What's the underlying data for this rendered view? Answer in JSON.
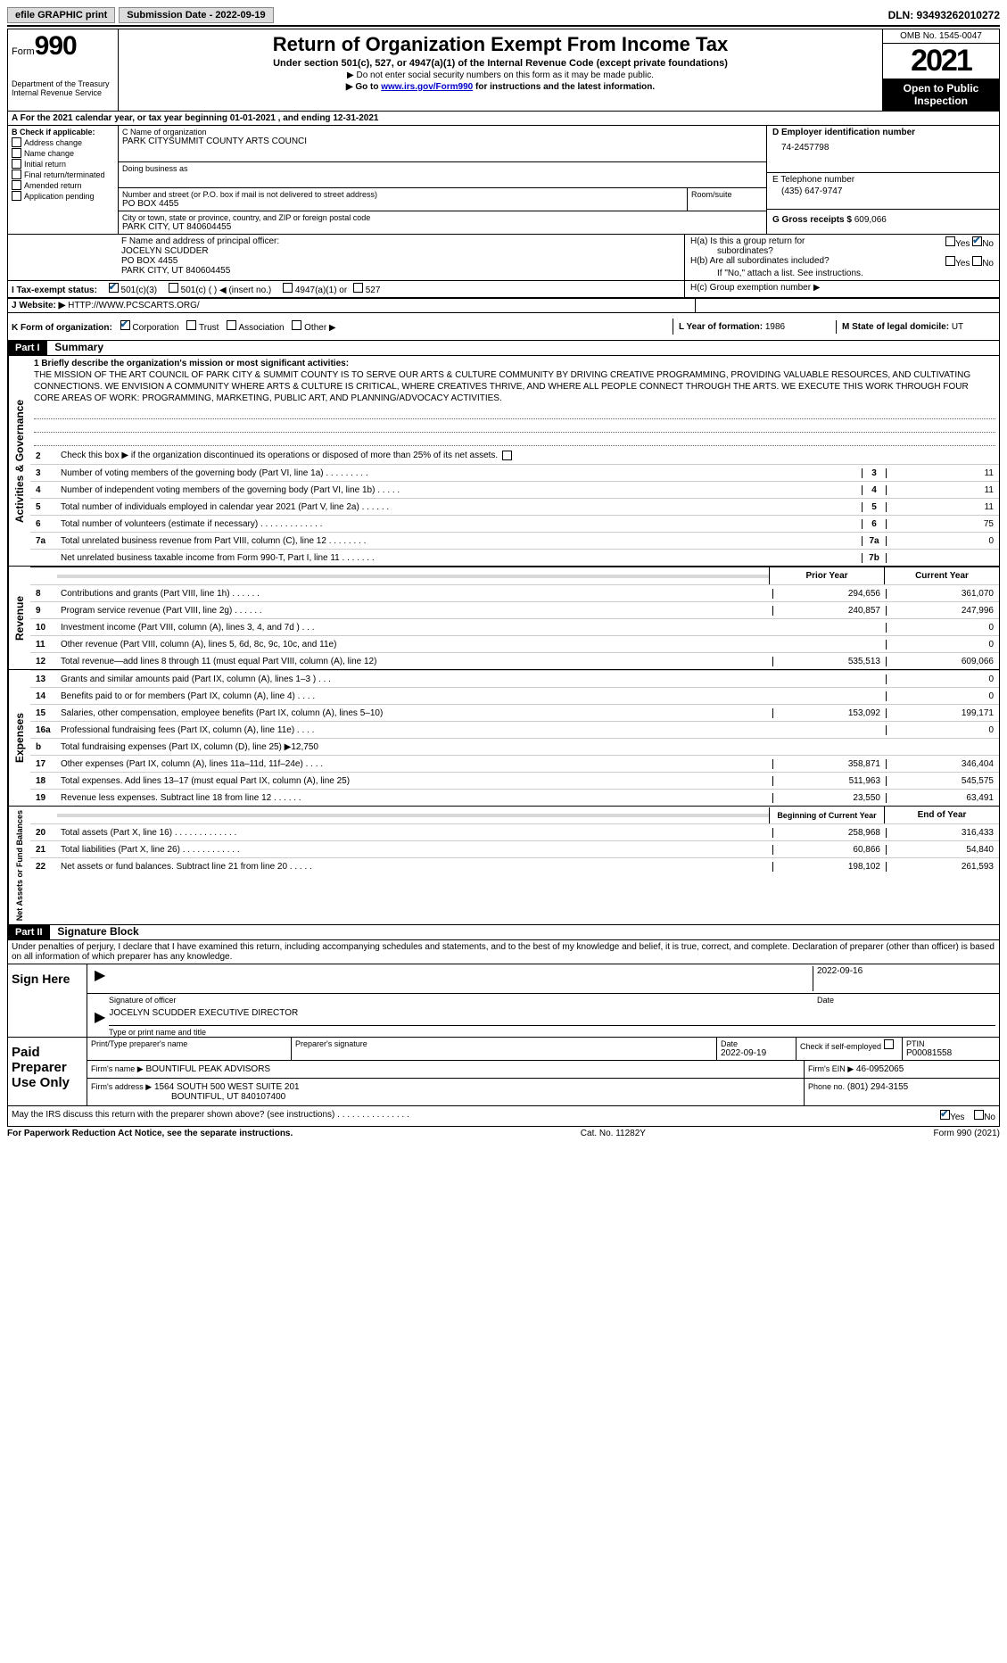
{
  "topbar": {
    "efile": "efile GRAPHIC print",
    "submission": "Submission Date - 2022-09-19",
    "dln": "DLN: 93493262010272"
  },
  "header": {
    "form_label": "Form",
    "form_num": "990",
    "dept": "Department of the Treasury",
    "irs": "Internal Revenue Service",
    "title": "Return of Organization Exempt From Income Tax",
    "subtitle": "Under section 501(c), 527, or 4947(a)(1) of the Internal Revenue Code (except private foundations)",
    "note1": "▶ Do not enter social security numbers on this form as it may be made public.",
    "note2": "▶ Go to ",
    "note2_link": "www.irs.gov/Form990",
    "note2_tail": " for instructions and the latest information.",
    "omb": "OMB No. 1545-0047",
    "year": "2021",
    "open": "Open to Public Inspection"
  },
  "period": {
    "label_a": "A For the 2021 calendar year, or tax year beginning 01-01-2021",
    "label_b": ", and ending 12-31-2021"
  },
  "section_b": {
    "label": "B Check if applicable:",
    "items": [
      "Address change",
      "Name change",
      "Initial return",
      "Final return/terminated",
      "Amended return",
      "Application pending"
    ]
  },
  "section_c": {
    "name_label": "C Name of organization",
    "name": "PARK CITYSUMMIT COUNTY ARTS COUNCI",
    "dba_label": "Doing business as",
    "addr_label": "Number and street (or P.O. box if mail is not delivered to street address)",
    "addr": "PO BOX 4455",
    "room_label": "Room/suite",
    "city_label": "City or town, state or province, country, and ZIP or foreign postal code",
    "city": "PARK CITY, UT  840604455"
  },
  "section_d": {
    "label": "D Employer identification number",
    "value": "74-2457798"
  },
  "section_e": {
    "label": "E Telephone number",
    "value": "(435) 647-9747"
  },
  "section_g": {
    "label": "G Gross receipts $",
    "value": "609,066"
  },
  "section_f": {
    "label": "F  Name and address of principal officer:",
    "name": "JOCELYN SCUDDER",
    "addr1": "PO BOX 4455",
    "addr2": "PARK CITY, UT  840604455"
  },
  "section_h": {
    "ha": "H(a)  Is this a group return for",
    "ha2": "subordinates?",
    "hb": "H(b)  Are all subordinates included?",
    "hb_note": "If \"No,\" attach a list. See instructions.",
    "hc": "H(c)  Group exemption number ▶",
    "yes": "Yes",
    "no": "No"
  },
  "tax_exempt": {
    "label": "I  Tax-exempt status:",
    "opt1": "501(c)(3)",
    "opt2": "501(c) (   ) ◀ (insert no.)",
    "opt3": "4947(a)(1) or",
    "opt4": "527"
  },
  "website": {
    "label": "J  Website: ▶",
    "value": "HTTP://WWW.PCSCARTS.ORG/"
  },
  "form_org": {
    "label": "K Form of organization:",
    "opts": [
      "Corporation",
      "Trust",
      "Association",
      "Other ▶"
    ]
  },
  "section_l": {
    "label": "L Year of formation:",
    "value": "1986"
  },
  "section_m": {
    "label": "M State of legal domicile:",
    "value": "UT"
  },
  "part1": {
    "header": "Part I",
    "title": "Summary"
  },
  "mission": {
    "label": "1  Briefly describe the organization's mission or most significant activities:",
    "text": "THE MISSION OF THE ART COUNCIL OF PARK CITY & SUMMIT COUNTY IS TO SERVE OUR ARTS & CULTURE COMMUNITY BY DRIVING CREATIVE PROGRAMMING, PROVIDING VALUABLE RESOURCES, AND CULTIVATING CONNECTIONS. WE ENVISION A COMMUNITY WHERE ARTS & CULTURE IS CRITICAL, WHERE CREATIVES THRIVE, AND WHERE ALL PEOPLE CONNECT THROUGH THE ARTS. WE EXECUTE THIS WORK THROUGH FOUR CORE AREAS OF WORK: PROGRAMMING, MARKETING, PUBLIC ART, AND PLANNING/ADVOCACY ACTIVITIES."
  },
  "governance": {
    "vert": "Activities & Governance",
    "line2": "Check this box ▶     if the organization discontinued its operations or disposed of more than 25% of its net assets.",
    "lines": [
      {
        "num": "3",
        "desc": "Number of voting members of the governing body (Part VI, line 1a)   .    .    .    .    .    .    .    .    .",
        "cell": "3",
        "val": "11"
      },
      {
        "num": "4",
        "desc": "Number of independent voting members of the governing body (Part VI, line 1b)   .    .    .    .    .",
        "cell": "4",
        "val": "11"
      },
      {
        "num": "5",
        "desc": "Total number of individuals employed in calendar year 2021 (Part V, line 2a)   .    .    .    .    .    .",
        "cell": "5",
        "val": "11"
      },
      {
        "num": "6",
        "desc": "Total number of volunteers (estimate if necessary)   .    .    .    .    .    .    .    .    .    .    .    .    .",
        "cell": "6",
        "val": "75"
      },
      {
        "num": "7a",
        "desc": "Total unrelated business revenue from Part VIII, column (C), line 12   .    .    .    .    .    .    .    .",
        "cell": "7a",
        "val": "0"
      },
      {
        "num": "  ",
        "desc": "Net unrelated business taxable income from Form 990-T, Part I, line 11   .    .    .    .    .    .    .",
        "cell": "7b",
        "val": ""
      }
    ]
  },
  "revenue": {
    "vert": "Revenue",
    "col1": "Prior Year",
    "col2": "Current Year",
    "lines": [
      {
        "num": "8",
        "desc": "Contributions and grants (Part VIII, line 1h)   .    .    .    .    .    .",
        "v1": "294,656",
        "v2": "361,070"
      },
      {
        "num": "9",
        "desc": "Program service revenue (Part VIII, line 2g)   .    .    .    .    .    .",
        "v1": "240,857",
        "v2": "247,996"
      },
      {
        "num": "10",
        "desc": "Investment income (Part VIII, column (A), lines 3, 4, and 7d )   .    .    .",
        "v1": "",
        "v2": "0"
      },
      {
        "num": "11",
        "desc": "Other revenue (Part VIII, column (A), lines 5, 6d, 8c, 9c, 10c, and 11e)",
        "v1": "",
        "v2": "0"
      },
      {
        "num": "12",
        "desc": "Total revenue—add lines 8 through 11 (must equal Part VIII, column (A), line 12)",
        "v1": "535,513",
        "v2": "609,066"
      }
    ]
  },
  "expenses": {
    "vert": "Expenses",
    "lines": [
      {
        "num": "13",
        "desc": "Grants and similar amounts paid (Part IX, column (A), lines 1–3 )   .    .    .",
        "v1": "",
        "v2": "0"
      },
      {
        "num": "14",
        "desc": "Benefits paid to or for members (Part IX, column (A), line 4)   .    .    .    .",
        "v1": "",
        "v2": "0"
      },
      {
        "num": "15",
        "desc": "Salaries, other compensation, employee benefits (Part IX, column (A), lines 5–10)",
        "v1": "153,092",
        "v2": "199,171"
      },
      {
        "num": "16a",
        "desc": "Professional fundraising fees (Part IX, column (A), line 11e)   .    .    .    .",
        "v1": "",
        "v2": "0"
      },
      {
        "num": "b",
        "desc": "Total fundraising expenses (Part IX, column (D), line 25) ▶12,750",
        "v1": "",
        "v2": "",
        "shaded": true
      },
      {
        "num": "17",
        "desc": "Other expenses (Part IX, column (A), lines 11a–11d, 11f–24e)   .    .    .    .",
        "v1": "358,871",
        "v2": "346,404"
      },
      {
        "num": "18",
        "desc": "Total expenses. Add lines 13–17 (must equal Part IX, column (A), line 25)",
        "v1": "511,963",
        "v2": "545,575"
      },
      {
        "num": "19",
        "desc": "Revenue less expenses. Subtract line 18 from line 12   .    .    .    .    .    .",
        "v1": "23,550",
        "v2": "63,491"
      }
    ]
  },
  "netassets": {
    "vert": "Net Assets or Fund Balances",
    "col1": "Beginning of Current Year",
    "col2": "End of Year",
    "lines": [
      {
        "num": "20",
        "desc": "Total assets (Part X, line 16)   .    .    .    .    .    .    .    .    .    .    .    .    .",
        "v1": "258,968",
        "v2": "316,433"
      },
      {
        "num": "21",
        "desc": "Total liabilities (Part X, line 26)   .    .    .    .    .    .    .    .    .    .    .    .",
        "v1": "60,866",
        "v2": "54,840"
      },
      {
        "num": "22",
        "desc": "Net assets or fund balances. Subtract line 21 from line 20   .    .    .    .    .",
        "v1": "198,102",
        "v2": "261,593"
      }
    ]
  },
  "part2": {
    "header": "Part II",
    "title": "Signature Block",
    "penalty": "Under penalties of perjury, I declare that I have examined this return, including accompanying schedules and statements, and to the best of my knowledge and belief, it is true, correct, and complete. Declaration of preparer (other than officer) is based on all information of which preparer has any knowledge."
  },
  "sign": {
    "label": "Sign Here",
    "sig_label": "Signature of officer",
    "date": "2022-09-16",
    "date_label": "Date",
    "name": "JOCELYN SCUDDER EXECUTIVE DIRECTOR",
    "name_label": "Type or print name and title"
  },
  "preparer": {
    "label": "Paid Preparer Use Only",
    "print_label": "Print/Type preparer's name",
    "sig_label": "Preparer's signature",
    "date_label": "Date",
    "date": "2022-09-19",
    "check_label": "Check         if self-employed",
    "ptin_label": "PTIN",
    "ptin": "P00081558",
    "firm_label": "Firm's name    ▶",
    "firm": "BOUNTIFUL PEAK ADVISORS",
    "ein_label": "Firm's EIN ▶",
    "ein": "46-0952065",
    "addr_label": "Firm's address ▶",
    "addr1": "1564 SOUTH 500 WEST SUITE 201",
    "addr2": "BOUNTIFUL, UT  840107400",
    "phone_label": "Phone no.",
    "phone": "(801) 294-3155"
  },
  "discuss": {
    "text": "May the IRS discuss this return with the preparer shown above? (see instructions)   .    .    .    .    .    .    .    .    .    .    .    .    .    .    .",
    "yes": "Yes",
    "no": "No"
  },
  "footer": {
    "left": "For Paperwork Reduction Act Notice, see the separate instructions.",
    "center": "Cat. No. 11282Y",
    "right": "Form 990 (2021)"
  }
}
